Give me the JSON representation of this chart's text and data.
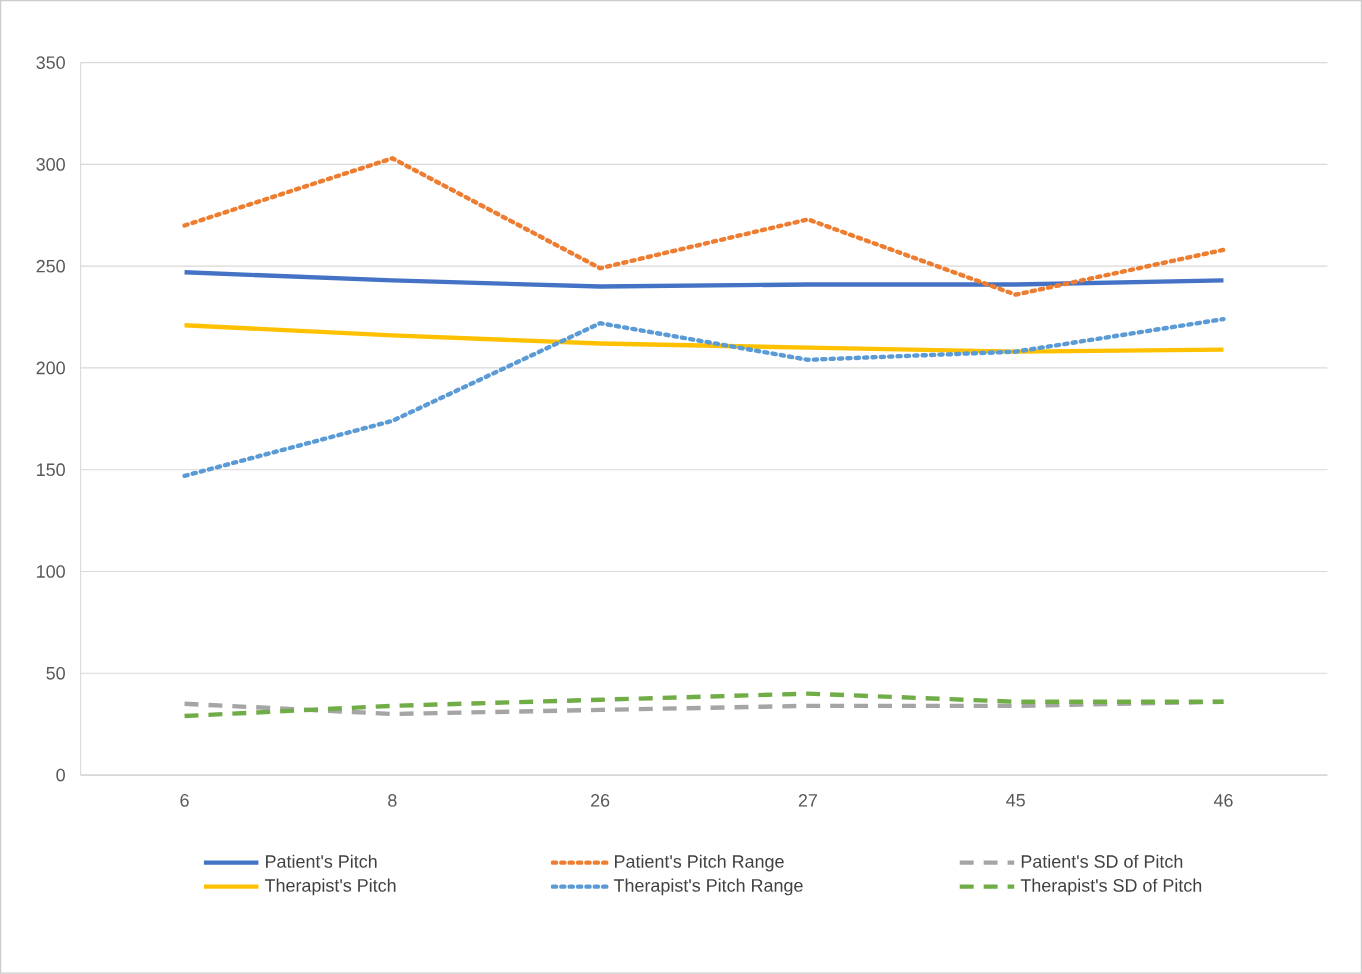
{
  "chart_data": {
    "type": "line",
    "categories": [
      "6",
      "8",
      "26",
      "27",
      "45",
      "46"
    ],
    "ylim": [
      0,
      350
    ],
    "yticks": [
      0,
      50,
      100,
      150,
      200,
      250,
      300,
      350
    ],
    "grid": "y",
    "legend": "bottom",
    "series": [
      {
        "name": "Patient's Pitch",
        "color": "#4472c4",
        "line_style": "solid",
        "values": [
          247,
          243,
          240,
          241,
          241,
          243
        ]
      },
      {
        "name": "Patient's Pitch Range",
        "color": "#ed7d31",
        "line_style": "dotted",
        "values": [
          270,
          303,
          249,
          273,
          236,
          258
        ]
      },
      {
        "name": "Patient's SD of Pitch",
        "color": "#a5a5a5",
        "line_style": "dashed",
        "values": [
          35,
          30,
          32,
          34,
          34,
          36
        ]
      },
      {
        "name": "Therapist's Pitch",
        "color": "#ffc000",
        "line_style": "solid",
        "values": [
          221,
          216,
          212,
          210,
          208,
          209
        ]
      },
      {
        "name": "Therapist's Pitch Range",
        "color": "#5b9bd5",
        "line_style": "dotted",
        "values": [
          147,
          174,
          222,
          204,
          208,
          224
        ]
      },
      {
        "name": "Therapist's SD of Pitch",
        "color": "#70ad47",
        "line_style": "dashed",
        "values": [
          29,
          34,
          37,
          40,
          36,
          36
        ]
      }
    ]
  }
}
